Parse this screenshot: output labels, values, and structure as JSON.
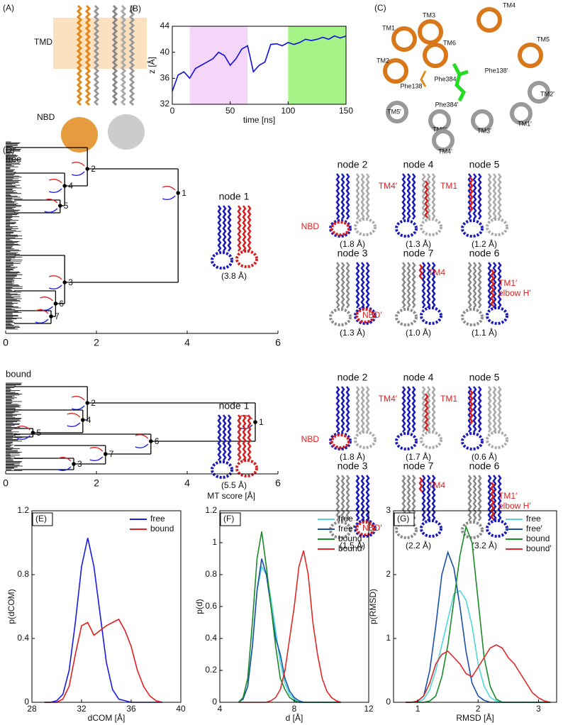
{
  "figure": {
    "panels": [
      "(A)",
      "(C)"
    ],
    "panel_a": [
      "TMD",
      "NBD"
    ],
    "panel_c": [
      "TM1",
      "TM3",
      "TM4",
      "TM6",
      "TM5",
      "TM2",
      "Phe138",
      "Phe384",
      "Phe384′",
      "Phe138′",
      "TM2′",
      "TM5′",
      "TM6′",
      "TM3′",
      "TM1′",
      "TM4′"
    ]
  },
  "chart_data": [
    {
      "type": "line",
      "panel": "(B)",
      "xlabel": "time [ns]",
      "ylabel": "z [Å]",
      "xlim": [
        0,
        150
      ],
      "xticks": [
        0,
        50,
        100,
        150
      ],
      "ylim": [
        32,
        44
      ],
      "yticks": [
        32,
        36,
        40,
        44
      ],
      "shaded": [
        {
          "xlim": [
            15,
            65
          ],
          "color": "#f6d6f8"
        },
        {
          "xlim": [
            100,
            150
          ],
          "color": "#a6f487"
        }
      ],
      "x": [
        0,
        5,
        10,
        15,
        20,
        25,
        30,
        35,
        40,
        45,
        50,
        55,
        60,
        65,
        70,
        75,
        80,
        85,
        90,
        95,
        100,
        105,
        110,
        115,
        120,
        125,
        130,
        135,
        140,
        145,
        150
      ],
      "series": [
        {
          "name": "z",
          "color": "#1010e0",
          "values": [
            34,
            36.5,
            37,
            36,
            37.5,
            38,
            38.5,
            39,
            40,
            39.5,
            38,
            39,
            40.5,
            41,
            37,
            38,
            38.5,
            41.2,
            41.3,
            41,
            41.5,
            41.2,
            41.5,
            42,
            41.8,
            42,
            42.3,
            42,
            42.5,
            42.2,
            42.5
          ]
        }
      ]
    },
    {
      "type": "dendrogram",
      "panel": "(D)",
      "title": "free",
      "xlim": [
        0,
        6
      ],
      "xticks": [
        0,
        2,
        4,
        6
      ],
      "categories": [
        "1",
        "2",
        "3",
        "4",
        "5",
        "6",
        "7"
      ],
      "values": [
        3.8,
        1.8,
        1.3,
        1.3,
        1.2,
        1.1,
        1.0
      ],
      "value_labels": [
        "(3.8 Å)",
        "(1.8 Å)",
        "(1.3 Å)",
        "(1.3 Å)",
        "(1.2 Å)",
        "(1.1 Å)",
        "(1.0 Å)"
      ],
      "node_names": [
        "node 1",
        "node 2",
        "node 3",
        "node 4",
        "node 5",
        "node 6",
        "node 7"
      ],
      "annotations": [
        [],
        [
          "NBD"
        ],
        [
          "NBD′"
        ],
        [
          "TM4′"
        ],
        [
          "TM1"
        ],
        [
          "TM1′",
          "elbow H′"
        ],
        [
          "TM4"
        ]
      ]
    },
    {
      "type": "dendrogram",
      "title": "bound",
      "xlabel": "MT score  [Å]",
      "xlim": [
        0,
        6
      ],
      "xticks": [
        0,
        2,
        4,
        6
      ],
      "categories": [
        "1",
        "2",
        "3",
        "4",
        "5",
        "6",
        "7"
      ],
      "values": [
        5.5,
        1.8,
        1.5,
        1.7,
        0.6,
        3.2,
        2.2
      ],
      "value_labels": [
        "(5.5 Å)",
        "(1.8 Å)",
        "(1.5 Å)",
        "(1.7 Å)",
        "(0.6 Å)",
        "(3.2 Å)",
        "(2.2 Å)"
      ],
      "node_names": [
        "node 1",
        "node 2",
        "node 3",
        "node 4",
        "node 5",
        "node 6",
        "node 7"
      ],
      "annotations": [
        [],
        [
          "NBD"
        ],
        [
          "NBD′"
        ],
        [
          "TM4′"
        ],
        [
          "TM1"
        ],
        [
          "TM1′",
          "elbow H′"
        ],
        [
          "TM4"
        ]
      ]
    },
    {
      "type": "line",
      "panel": "(E)",
      "xlabel": "dCOM [Å]",
      "ylabel": "p(dCOM)",
      "legend": "upper right",
      "xlim": [
        28,
        40
      ],
      "xticks": [
        28,
        32,
        36,
        40
      ],
      "ylim": [
        0,
        1.2
      ],
      "yticks": [
        0,
        0.4,
        0.8,
        1.2
      ],
      "x": [
        29,
        29.5,
        30,
        30.5,
        31,
        31.5,
        32,
        32.5,
        33,
        33.5,
        34,
        34.5,
        35,
        35.5,
        36,
        36.5,
        37,
        37.5,
        38,
        38.5
      ],
      "series": [
        {
          "name": "free",
          "color": "#1a1ae0",
          "values": [
            0,
            0,
            0.01,
            0.05,
            0.2,
            0.5,
            0.85,
            1.03,
            0.85,
            0.55,
            0.25,
            0.08,
            0.02,
            0.01,
            0,
            0,
            0,
            0,
            0,
            0
          ]
        },
        {
          "name": "bound",
          "color": "#e02020",
          "values": [
            0,
            0,
            0,
            0.02,
            0.1,
            0.3,
            0.48,
            0.5,
            0.42,
            0.45,
            0.48,
            0.5,
            0.52,
            0.45,
            0.35,
            0.2,
            0.1,
            0.04,
            0.01,
            0
          ]
        }
      ]
    },
    {
      "type": "line",
      "panel": "(F)",
      "xlabel": "d [Å]",
      "ylabel": "p(d)",
      "legend": "upper right",
      "xlim": [
        4,
        12
      ],
      "xticks": [
        4,
        8,
        12
      ],
      "ylim": [
        0,
        1.2
      ],
      "yticks": [
        0,
        0.2,
        0.4,
        0.6,
        0.8,
        1,
        1.2
      ],
      "x": [
        5,
        5.25,
        5.5,
        5.75,
        6,
        6.25,
        6.5,
        6.75,
        7,
        7.25,
        7.5,
        7.75,
        8,
        8.25,
        8.5,
        8.75,
        9,
        9.25,
        9.5,
        9.75,
        10,
        10.25,
        10.5
      ],
      "series": [
        {
          "name": "free",
          "color": "#50d8d8",
          "values": [
            0,
            0.02,
            0.1,
            0.35,
            0.7,
            0.85,
            0.8,
            0.65,
            0.45,
            0.25,
            0.12,
            0.05,
            0.02,
            0,
            0,
            0,
            0,
            0,
            0,
            0,
            0,
            0,
            0
          ]
        },
        {
          "name": "free′",
          "color": "#1c4fa8",
          "values": [
            0,
            0.02,
            0.1,
            0.35,
            0.7,
            0.9,
            0.8,
            0.6,
            0.4,
            0.3,
            0.15,
            0.07,
            0.03,
            0.01,
            0,
            0,
            0,
            0,
            0,
            0,
            0,
            0,
            0
          ]
        },
        {
          "name": "bound",
          "color": "#1a8a2a",
          "values": [
            0,
            0.03,
            0.15,
            0.5,
            0.9,
            1.07,
            0.85,
            0.6,
            0.35,
            0.15,
            0.08,
            0.03,
            0.01,
            0,
            0,
            0,
            0,
            0,
            0,
            0,
            0,
            0,
            0
          ]
        },
        {
          "name": "bound′",
          "color": "#e02828",
          "values": [
            0,
            0,
            0,
            0,
            0,
            0,
            0,
            0.01,
            0.03,
            0.08,
            0.2,
            0.4,
            0.6,
            0.85,
            0.95,
            0.8,
            0.5,
            0.3,
            0.15,
            0.07,
            0.03,
            0.01,
            0
          ]
        }
      ]
    },
    {
      "type": "line",
      "panel": "(G)",
      "xlabel": "RMSD  [Å]",
      "ylabel": "p(RMSD)",
      "legend": "upper right",
      "xlim": [
        0.6,
        3.3
      ],
      "xticks": [
        1,
        2,
        3
      ],
      "ylim": [
        0,
        3
      ],
      "yticks": [
        0,
        1,
        2,
        3
      ],
      "x": [
        0.8,
        0.9,
        1,
        1.1,
        1.2,
        1.3,
        1.4,
        1.5,
        1.6,
        1.7,
        1.8,
        1.9,
        2,
        2.1,
        2.2,
        2.3,
        2.4,
        2.5,
        2.6,
        2.7,
        2.8,
        2.9,
        3,
        3.1,
        3.2
      ],
      "series": [
        {
          "name": "free",
          "color": "#50d8d8",
          "values": [
            0,
            0,
            0,
            0.05,
            0.2,
            0.5,
            0.9,
            1.3,
            1.7,
            1.75,
            1.6,
            1.2,
            0.6,
            0.25,
            0.08,
            0.02,
            0,
            0,
            0,
            0,
            0,
            0,
            0,
            0,
            0
          ]
        },
        {
          "name": "free′",
          "color": "#1c4fa8",
          "values": [
            0,
            0,
            0.02,
            0.1,
            0.5,
            1.2,
            2,
            2.35,
            2.1,
            1.5,
            0.8,
            0.3,
            0.1,
            0.03,
            0,
            0,
            0,
            0,
            0,
            0,
            0,
            0,
            0,
            0,
            0
          ]
        },
        {
          "name": "bound",
          "color": "#1a8a2a",
          "values": [
            0,
            0,
            0,
            0,
            0.02,
            0.1,
            0.4,
            0.9,
            1.6,
            2.3,
            2.75,
            2.5,
            1.6,
            0.7,
            0.25,
            0.05,
            0,
            0,
            0,
            0,
            0,
            0,
            0,
            0,
            0
          ]
        },
        {
          "name": "bound′",
          "color": "#e02828",
          "values": [
            0,
            0,
            0.02,
            0.1,
            0.3,
            0.6,
            0.75,
            0.8,
            0.7,
            0.6,
            0.45,
            0.4,
            0.55,
            0.7,
            0.85,
            0.9,
            0.85,
            0.7,
            0.6,
            0.45,
            0.3,
            0.15,
            0.07,
            0.02,
            0
          ]
        }
      ]
    }
  ]
}
